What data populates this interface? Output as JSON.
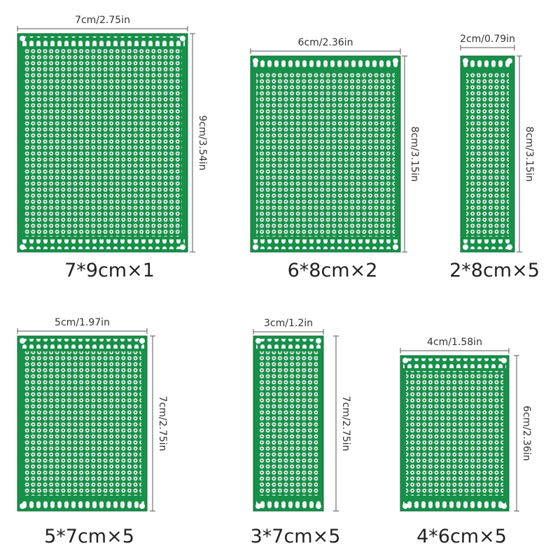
{
  "boards": [
    {
      "width_label": "7cm/2.75in",
      "height_label": "9cm/3.54in",
      "caption": "7*9cm×1"
    },
    {
      "width_label": "6cm/2.36in",
      "height_label": "8cm/3.15in",
      "caption": "6*8cm×2"
    },
    {
      "width_label": "2cm/0.79in",
      "height_label": "8cm/3.15in",
      "caption": "2*8cm×5"
    },
    {
      "width_label": "5cm/1.97in",
      "height_label": "7cm/2.75in",
      "caption": "5*7cm×5"
    },
    {
      "width_label": "3cm/1.2in",
      "height_label": "7cm/2.75in",
      "caption": "3*7cm×5"
    },
    {
      "width_label": "4cm/1.58in",
      "height_label": "6cm/2.36in",
      "caption": "4*6cm×5"
    }
  ]
}
